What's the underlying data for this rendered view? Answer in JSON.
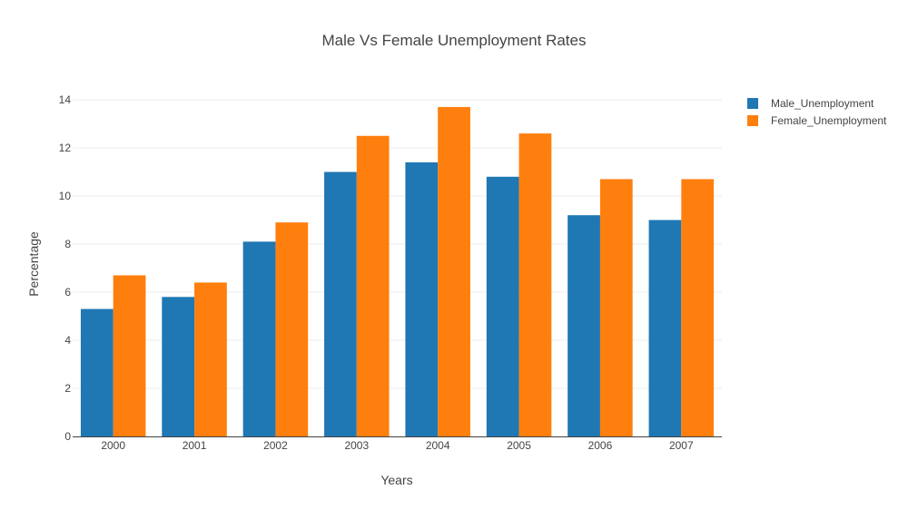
{
  "chart_data": {
    "type": "bar",
    "title": "Male Vs Female Unemployment Rates",
    "xlabel": "Years",
    "ylabel": "Percentage",
    "categories": [
      "2000",
      "2001",
      "2002",
      "2003",
      "2004",
      "2005",
      "2006",
      "2007"
    ],
    "series": [
      {
        "name": "Male_Unemployment",
        "color": "#1f77b4",
        "values": [
          5.3,
          5.8,
          8.1,
          11.0,
          11.4,
          10.8,
          9.2,
          9.0
        ]
      },
      {
        "name": "Female_Unemployment",
        "color": "#ff7f0e",
        "values": [
          6.7,
          6.4,
          8.9,
          12.5,
          13.7,
          12.6,
          10.7,
          10.7
        ]
      }
    ],
    "ylim": [
      0,
      14
    ],
    "yticks": [
      "0",
      "2",
      "4",
      "6",
      "8",
      "10",
      "12",
      "14"
    ],
    "grid": true,
    "legend_position": "top-right"
  }
}
